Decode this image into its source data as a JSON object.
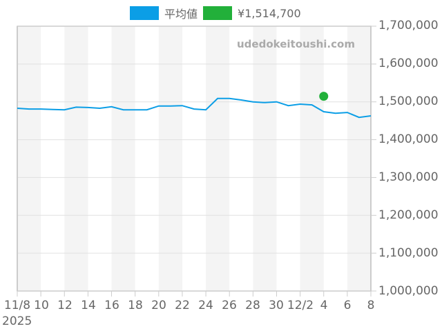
{
  "legend": {
    "items": [
      {
        "label": "平均値",
        "color": "#0b9ee6"
      },
      {
        "label": "¥1,514,700",
        "color": "#22b03a"
      }
    ]
  },
  "watermark": "udedokeitoushi.com",
  "y_axis": {
    "labels": [
      "1,700,000",
      "1,600,000",
      "1,500,000",
      "1,400,000",
      "1,300,000",
      "1,200,000",
      "1,100,000",
      "1,000,000"
    ]
  },
  "x_axis": {
    "labels": [
      "11/8",
      "10",
      "12",
      "14",
      "16",
      "18",
      "20",
      "22",
      "24",
      "26",
      "28",
      "30",
      "12/2",
      "4",
      "6",
      "8"
    ],
    "year": "2025"
  },
  "chart_data": {
    "type": "line",
    "title": "",
    "xlabel": "",
    "ylabel": "",
    "ylim": [
      1000000,
      1700000
    ],
    "grid": true,
    "legend_position": "top",
    "x": [
      "2025-11-08",
      "2025-11-09",
      "2025-11-10",
      "2025-11-11",
      "2025-11-12",
      "2025-11-13",
      "2025-11-14",
      "2025-11-15",
      "2025-11-16",
      "2025-11-17",
      "2025-11-18",
      "2025-11-19",
      "2025-11-20",
      "2025-11-21",
      "2025-11-22",
      "2025-11-23",
      "2025-11-24",
      "2025-11-25",
      "2025-11-26",
      "2025-11-27",
      "2025-11-28",
      "2025-11-29",
      "2025-11-30",
      "2025-12-01",
      "2025-12-02",
      "2025-12-03",
      "2025-12-04",
      "2025-12-05",
      "2025-12-06",
      "2025-12-07",
      "2025-12-08"
    ],
    "series": [
      {
        "name": "平均値",
        "color": "#0b9ee6",
        "values": [
          1483000,
          1481000,
          1481000,
          1480000,
          1479000,
          1486000,
          1485000,
          1483000,
          1487000,
          1479000,
          1479000,
          1479000,
          1489000,
          1489000,
          1490000,
          1481000,
          1479000,
          1509000,
          1509000,
          1505000,
          1500000,
          1498000,
          1500000,
          1490000,
          1494000,
          1492000,
          1474000,
          1470000,
          1472000,
          1459000,
          1463000
        ]
      },
      {
        "name": "¥1,514,700",
        "color": "#22b03a",
        "type": "scatter",
        "points": [
          {
            "x": "2025-12-04",
            "y": 1514700
          }
        ]
      }
    ]
  }
}
